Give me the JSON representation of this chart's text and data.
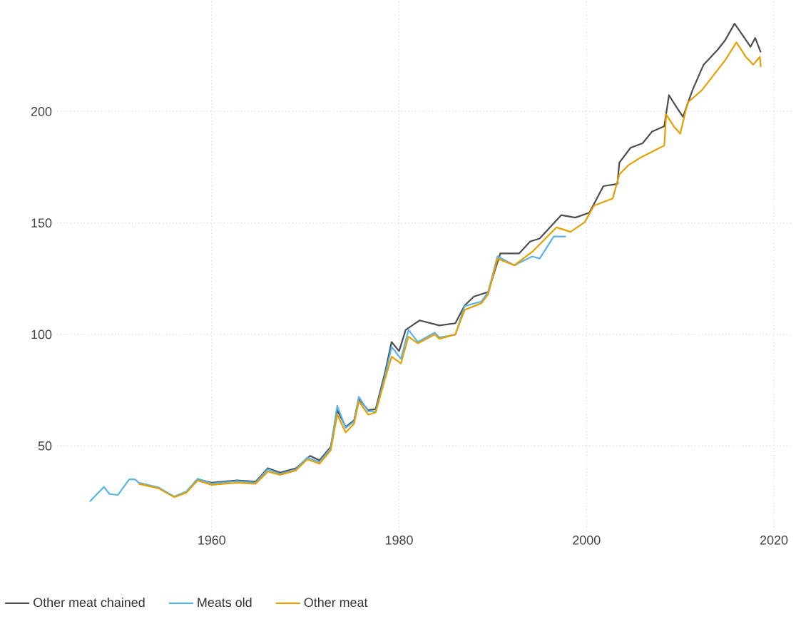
{
  "chart_data": {
    "type": "line",
    "xlim": [
      1943.5,
      2021.9
    ],
    "ylim": [
      12,
      250
    ],
    "xticks": [
      1960,
      1980,
      2000,
      2020
    ],
    "yticks": [
      50,
      100,
      150,
      200
    ],
    "grid": true,
    "legend": "bottom",
    "line_style": "solid",
    "marker": "none",
    "series": [
      {
        "name": "Other meat chained",
        "color": "#4d4d4d",
        "x": [
          1958.5,
          1960,
          1962.7,
          1964.7,
          1966,
          1967.3,
          1969,
          1970.5,
          1971.5,
          1972.7,
          1973.4,
          1974.3,
          1975.2,
          1975.7,
          1976.7,
          1977.5,
          1978.5,
          1979.2,
          1980,
          1980.7,
          1982.2,
          1984.3,
          1986,
          1987,
          1988,
          1989.5,
          1990.8,
          1992.8,
          1994,
          1995,
          1997.3,
          1998.8,
          2000.3,
          2001.8,
          2003.3,
          2003.5,
          2004.7,
          2006,
          2007,
          2008.3,
          2008.8,
          2009.6,
          2010.3,
          2011.3,
          2012.5,
          2014,
          2014.8,
          2015.8,
          2016.7,
          2017.5,
          2018,
          2018.6
        ],
        "values": [
          35,
          33.5,
          34.5,
          34,
          40,
          38,
          40,
          45.5,
          43.5,
          49.5,
          66,
          58.5,
          61.5,
          71,
          66,
          66.5,
          83,
          96.6,
          92.5,
          102,
          106.3,
          104,
          105,
          113,
          117,
          119,
          136.3,
          136.3,
          141.7,
          143,
          153.5,
          152.4,
          154.6,
          166.5,
          167.5,
          177,
          183.7,
          185.8,
          191,
          193.4,
          207.3,
          202,
          197.6,
          209.5,
          221,
          227.7,
          232,
          239.4,
          234,
          229,
          233,
          226.5
        ]
      },
      {
        "name": "Meats old",
        "color": "#56b4e9",
        "x": [
          1947,
          1948.5,
          1949.1,
          1950,
          1951.2,
          1951.8,
          1952.2,
          1954.3,
          1956,
          1957.3,
          1958.5,
          1960,
          1962.7,
          1964.7,
          1966,
          1967.3,
          1969,
          1970.2,
          1971.5,
          1972.7,
          1973.4,
          1974.3,
          1975.2,
          1975.7,
          1976.7,
          1977.5,
          1978.5,
          1979.2,
          1980.2,
          1981,
          1982,
          1983.8,
          1984.3,
          1986,
          1987,
          1988.8,
          1989.5,
          1990.5,
          1992.3,
          1994.2,
          1995,
          1996.5,
          1997.8
        ],
        "values": [
          25,
          31.6,
          28.4,
          28,
          35,
          35,
          33.5,
          31.4,
          27.3,
          29.5,
          35.3,
          33.1,
          34.2,
          33.5,
          39.5,
          37.4,
          39.5,
          44.8,
          42.7,
          49,
          68,
          58,
          61,
          72,
          65.5,
          65.5,
          81.5,
          94.4,
          89,
          102,
          96.6,
          100.8,
          98.7,
          99.8,
          112.7,
          114.8,
          119,
          135,
          131,
          135,
          134,
          143.9,
          143.9
        ]
      },
      {
        "name": "Other meat",
        "color": "#e69f00",
        "x": [
          1952.2,
          1954.3,
          1956,
          1957.3,
          1958.5,
          1960,
          1962.7,
          1964.7,
          1966,
          1967.3,
          1969,
          1970.2,
          1971.5,
          1972.7,
          1973.4,
          1974.3,
          1975.2,
          1975.7,
          1976.7,
          1977.5,
          1978.5,
          1979.2,
          1980.2,
          1981,
          1982,
          1983.8,
          1984.3,
          1986,
          1987,
          1988.8,
          1989.5,
          1990.5,
          1992.3,
          1994.2,
          1996.8,
          1998.3,
          1999.8,
          2000.8,
          2002.8,
          2003.5,
          2004.5,
          2005.8,
          2007.3,
          2008.3,
          2008.5,
          2009.3,
          2010,
          2010.8,
          2012.3,
          2014.8,
          2016,
          2017,
          2017.8,
          2018.5,
          2018.6
        ],
        "values": [
          33,
          31,
          27,
          29,
          34.5,
          32.5,
          33.5,
          33,
          38.5,
          37,
          39,
          44,
          42,
          48,
          64,
          56,
          60,
          70,
          64,
          65,
          80,
          90,
          87,
          99,
          96,
          100,
          98,
          100,
          111,
          114,
          118,
          134,
          131,
          137,
          148,
          146,
          150.3,
          157.8,
          161,
          171.8,
          176,
          179.4,
          182.6,
          184.7,
          198.7,
          193.4,
          190,
          204,
          209.5,
          223,
          231,
          224.5,
          221,
          224.5,
          220
        ]
      }
    ]
  }
}
